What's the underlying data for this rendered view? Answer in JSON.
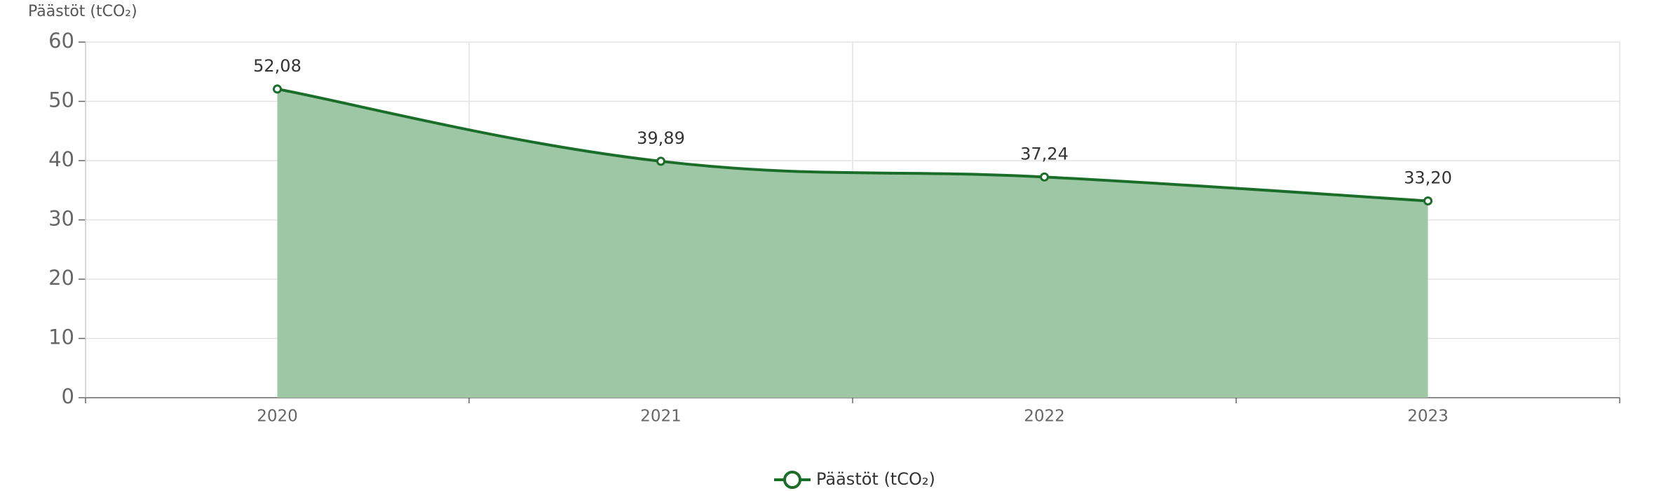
{
  "chart_data": {
    "type": "area",
    "y_label": "Päästöt (tCO₂)",
    "categories": [
      "2020",
      "2021",
      "2022",
      "2023"
    ],
    "series": [
      {
        "name": "Päästöt (tCO₂)",
        "color": "#1a6e2a",
        "fill": "#9ec8a5",
        "values": [
          52.08,
          39.89,
          37.24,
          33.2
        ],
        "value_labels": [
          "52,08",
          "39,89",
          "37,24",
          "33,20"
        ]
      }
    ],
    "ylim": [
      0,
      60
    ],
    "yticks": [
      0,
      10,
      20,
      30,
      40,
      50,
      60
    ],
    "grid": true,
    "legend": "bottom"
  }
}
